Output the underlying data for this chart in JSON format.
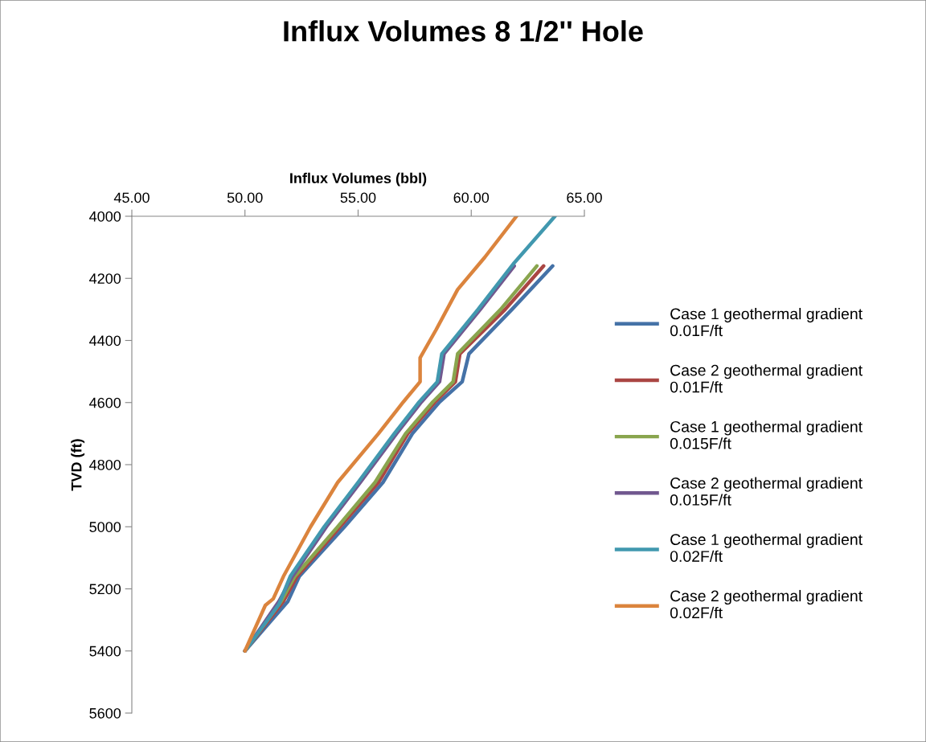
{
  "chart_data": {
    "type": "line",
    "title": "Influx Volumes 8 1/2'' Hole",
    "xlabel": "Influx Volumes (bbl)",
    "ylabel": "TVD (ft)",
    "xlim": [
      45,
      65
    ],
    "xticks": [
      {
        "value": 45,
        "label": "45.00"
      },
      {
        "value": 50,
        "label": "50.00"
      },
      {
        "value": 55,
        "label": "55.00"
      },
      {
        "value": 60,
        "label": "60.00"
      },
      {
        "value": 65,
        "label": "65.00"
      }
    ],
    "ylim": [
      5600,
      4000
    ],
    "yticks": [
      4000,
      4200,
      4400,
      4600,
      4800,
      5000,
      5200,
      5400,
      5600
    ],
    "grid": false,
    "legend": "right",
    "marker": "none",
    "line_style": "solid",
    "series": [
      {
        "name": "Case 1 geothermal gradient 0.01F/ft",
        "color": "#4572a7",
        "x": [
          63.6,
          61.8,
          59.9,
          59.6,
          58.6,
          57.4,
          56.1,
          54.4,
          52.4,
          51.9,
          50.0
        ],
        "values": [
          4160,
          4300,
          4443,
          4533,
          4598,
          4700,
          4857,
          5000,
          5160,
          5240,
          5400
        ]
      },
      {
        "name": " Case 2 geothermal gradient 0.01F/ft",
        "color": "#aa4643",
        "x": [
          63.2,
          61.5,
          59.5,
          59.3,
          58.4,
          57.2,
          55.9,
          54.2,
          52.3,
          51.7,
          50.0
        ],
        "values": [
          4160,
          4300,
          4443,
          4533,
          4598,
          4700,
          4857,
          5000,
          5160,
          5240,
          5400
        ]
      },
      {
        "name": "Case 1 geothermal gradient 0.015F/ft",
        "color": "#89a54e",
        "x": [
          62.9,
          61.3,
          59.4,
          59.2,
          58.3,
          57.1,
          55.75,
          54.1,
          52.2,
          51.6,
          50.0
        ],
        "values": [
          4160,
          4300,
          4443,
          4533,
          4598,
          4700,
          4857,
          5000,
          5160,
          5240,
          5400
        ]
      },
      {
        "name": " Case 2 geothermal gradient 0.015F/ft",
        "color": "#71588f",
        "x": [
          61.9,
          60.4,
          58.8,
          58.6,
          57.8,
          56.7,
          55.1,
          53.6,
          52.1,
          51.5,
          50.0
        ],
        "values": [
          4160,
          4300,
          4443,
          4533,
          4598,
          4700,
          4857,
          5000,
          5160,
          5240,
          5400
        ]
      },
      {
        "name": "Case 1 geothermal gradient 0.02F/ft",
        "color": "#4198af",
        "x": [
          63.7,
          61.9,
          60.3,
          58.7,
          58.5,
          57.7,
          56.6,
          55.0,
          53.5,
          52.0,
          51.5,
          50.0
        ],
        "values": [
          4000,
          4150,
          4300,
          4443,
          4533,
          4598,
          4700,
          4857,
          5000,
          5160,
          5250,
          5400
        ]
      },
      {
        "name": "Case 2 geothermal gradient 0.02F/ft",
        "color": "#db843d",
        "x": [
          62.0,
          60.6,
          59.4,
          58.45,
          57.74,
          57.74,
          57.0,
          55.9,
          54.1,
          52.9,
          51.7,
          51.25,
          50.9,
          50.0
        ],
        "values": [
          4000,
          4132,
          4236,
          4365,
          4456,
          4533,
          4598,
          4700,
          4857,
          5000,
          5160,
          5232,
          5253,
          5400
        ]
      }
    ]
  }
}
